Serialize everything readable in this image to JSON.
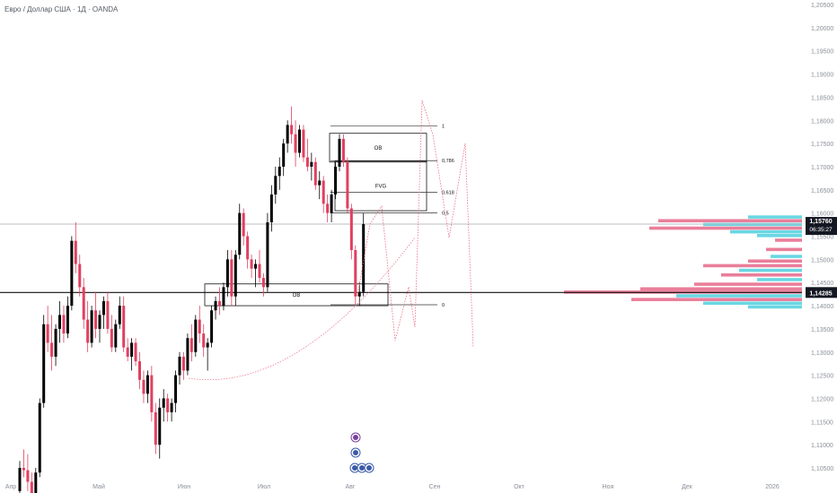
{
  "header": {
    "title": "Евро / Доллар США · 1Д · OANDA"
  },
  "chart_data": {
    "type": "candlestick",
    "ylim": [
      1.1025,
      1.205
    ],
    "y_ticks": [
      "1,20500",
      "1,20000",
      "1,19500",
      "1,19000",
      "1,18500",
      "1,18000",
      "1,17500",
      "1,17000",
      "1,16500",
      "1,16000",
      "1,15500",
      "1,15000",
      "1,14500",
      "1,14000",
      "1,13500",
      "1,13000",
      "1,12500",
      "1,12000",
      "1,11500",
      "1,11000",
      "1,10500"
    ],
    "x_ticks": [
      "Апр",
      "Май",
      "Июн",
      "Июл",
      "Авг",
      "Сен",
      "Окт",
      "Ноя",
      "Дек",
      "2026"
    ],
    "current_price": {
      "label": "1,15760",
      "countdown": "06:35:27",
      "value": 1.1576
    },
    "horizontal_line": {
      "label": "1,14285",
      "value": 1.14285
    },
    "fib_levels": [
      {
        "label": "1",
        "value": 1.1788
      },
      {
        "label": "0,786",
        "value": 1.1713
      },
      {
        "label": "0,618",
        "value": 1.1645
      },
      {
        "label": "0,5",
        "value": 1.16
      },
      {
        "label": "0",
        "value": 1.1402
      }
    ],
    "zones": [
      {
        "label": "OB",
        "top": 1.1772,
        "bottom": 1.171
      },
      {
        "label": "FVG",
        "top": 1.1712,
        "bottom": 1.1605
      },
      {
        "label": "OB",
        "top": 1.1447,
        "bottom": 1.14
      }
    ],
    "candles": [
      [
        1.1,
        1.1065,
        1.099,
        1.105
      ],
      [
        1.105,
        1.109,
        1.103,
        1.1045
      ],
      [
        1.1045,
        1.108,
        1.1,
        1.102
      ],
      [
        1.102,
        1.104,
        1.096,
        1.099
      ],
      [
        1.099,
        1.105,
        1.098,
        1.104
      ],
      [
        1.104,
        1.12,
        1.103,
        1.119
      ],
      [
        1.119,
        1.138,
        1.118,
        1.136
      ],
      [
        1.136,
        1.14,
        1.13,
        1.132
      ],
      [
        1.132,
        1.138,
        1.126,
        1.129
      ],
      [
        1.129,
        1.136,
        1.127,
        1.135
      ],
      [
        1.135,
        1.141,
        1.132,
        1.138
      ],
      [
        1.138,
        1.14,
        1.132,
        1.134
      ],
      [
        1.134,
        1.142,
        1.133,
        1.14
      ],
      [
        1.14,
        1.155,
        1.139,
        1.154
      ],
      [
        1.154,
        1.158,
        1.147,
        1.149
      ],
      [
        1.149,
        1.151,
        1.142,
        1.144
      ],
      [
        1.144,
        1.146,
        1.135,
        1.137
      ],
      [
        1.137,
        1.141,
        1.13,
        1.132
      ],
      [
        1.132,
        1.14,
        1.131,
        1.139
      ],
      [
        1.139,
        1.143,
        1.133,
        1.135
      ],
      [
        1.135,
        1.139,
        1.132,
        1.138
      ],
      [
        1.138,
        1.142,
        1.135,
        1.141
      ],
      [
        1.141,
        1.143,
        1.134,
        1.135
      ],
      [
        1.135,
        1.138,
        1.13,
        1.131
      ],
      [
        1.131,
        1.137,
        1.13,
        1.136
      ],
      [
        1.136,
        1.142,
        1.135,
        1.14
      ],
      [
        1.14,
        1.142,
        1.13,
        1.131
      ],
      [
        1.131,
        1.133,
        1.128,
        1.129
      ],
      [
        1.129,
        1.133,
        1.126,
        1.132
      ],
      [
        1.132,
        1.133,
        1.127,
        1.128
      ],
      [
        1.128,
        1.13,
        1.122,
        1.124
      ],
      [
        1.124,
        1.126,
        1.119,
        1.121
      ],
      [
        1.121,
        1.126,
        1.119,
        1.125
      ],
      [
        1.125,
        1.127,
        1.115,
        1.117
      ],
      [
        1.117,
        1.119,
        1.108,
        1.11
      ],
      [
        1.11,
        1.12,
        1.107,
        1.118
      ],
      [
        1.118,
        1.122,
        1.115,
        1.12
      ],
      [
        1.12,
        1.121,
        1.115,
        1.117
      ],
      [
        1.117,
        1.12,
        1.115,
        1.119
      ],
      [
        1.119,
        1.126,
        1.117,
        1.125
      ],
      [
        1.125,
        1.13,
        1.123,
        1.129
      ],
      [
        1.129,
        1.13,
        1.124,
        1.126
      ],
      [
        1.126,
        1.134,
        1.125,
        1.133
      ],
      [
        1.133,
        1.136,
        1.128,
        1.13
      ],
      [
        1.13,
        1.138,
        1.129,
        1.137
      ],
      [
        1.137,
        1.14,
        1.132,
        1.134
      ],
      [
        1.134,
        1.136,
        1.129,
        1.131
      ],
      [
        1.131,
        1.133,
        1.126,
        1.132
      ],
      [
        1.132,
        1.14,
        1.131,
        1.139
      ],
      [
        1.139,
        1.142,
        1.137,
        1.141
      ],
      [
        1.141,
        1.144,
        1.138,
        1.14
      ],
      [
        1.14,
        1.145,
        1.139,
        1.144
      ],
      [
        1.144,
        1.152,
        1.142,
        1.15
      ],
      [
        1.15,
        1.152,
        1.14,
        1.142
      ],
      [
        1.142,
        1.152,
        1.14,
        1.151
      ],
      [
        1.151,
        1.162,
        1.15,
        1.16
      ],
      [
        1.16,
        1.161,
        1.153,
        1.155
      ],
      [
        1.155,
        1.156,
        1.148,
        1.15
      ],
      [
        1.15,
        1.151,
        1.146,
        1.148
      ],
      [
        1.148,
        1.15,
        1.144,
        1.149
      ],
      [
        1.149,
        1.152,
        1.145,
        1.146
      ],
      [
        1.146,
        1.147,
        1.142,
        1.144
      ],
      [
        1.144,
        1.16,
        1.143,
        1.158
      ],
      [
        1.158,
        1.166,
        1.156,
        1.164
      ],
      [
        1.164,
        1.17,
        1.162,
        1.168
      ],
      [
        1.168,
        1.172,
        1.165,
        1.17
      ],
      [
        1.17,
        1.176,
        1.168,
        1.175
      ],
      [
        1.175,
        1.18,
        1.173,
        1.179
      ],
      [
        1.179,
        1.183,
        1.175,
        1.177
      ],
      [
        1.177,
        1.18,
        1.17,
        1.173
      ],
      [
        1.173,
        1.179,
        1.172,
        1.178
      ],
      [
        1.178,
        1.179,
        1.171,
        1.172
      ],
      [
        1.172,
        1.176,
        1.169,
        1.17
      ],
      [
        1.17,
        1.173,
        1.167,
        1.171
      ],
      [
        1.171,
        1.172,
        1.165,
        1.166
      ],
      [
        1.166,
        1.169,
        1.163,
        1.167
      ],
      [
        1.167,
        1.168,
        1.16,
        1.162
      ],
      [
        1.162,
        1.164,
        1.158,
        1.16
      ],
      [
        1.16,
        1.165,
        1.158,
        1.164
      ],
      [
        1.164,
        1.171,
        1.163,
        1.17
      ],
      [
        1.17,
        1.177,
        1.169,
        1.176
      ],
      [
        1.176,
        1.177,
        1.17,
        1.171
      ],
      [
        1.171,
        1.172,
        1.16,
        1.161
      ],
      [
        1.161,
        1.162,
        1.15,
        1.152
      ],
      [
        1.152,
        1.153,
        1.14,
        1.142
      ],
      [
        1.142,
        1.145,
        1.14,
        1.143
      ],
      [
        1.143,
        1.16,
        1.142,
        1.1576
      ]
    ],
    "volume_profile_note": "horizontal volume profile on right side in pink and cyan",
    "colors": {
      "up": "#000000",
      "down": "#e0405f",
      "profile_pink": "#e8708f",
      "profile_cyan": "#59d3e0",
      "projection": "#e96b83"
    }
  }
}
